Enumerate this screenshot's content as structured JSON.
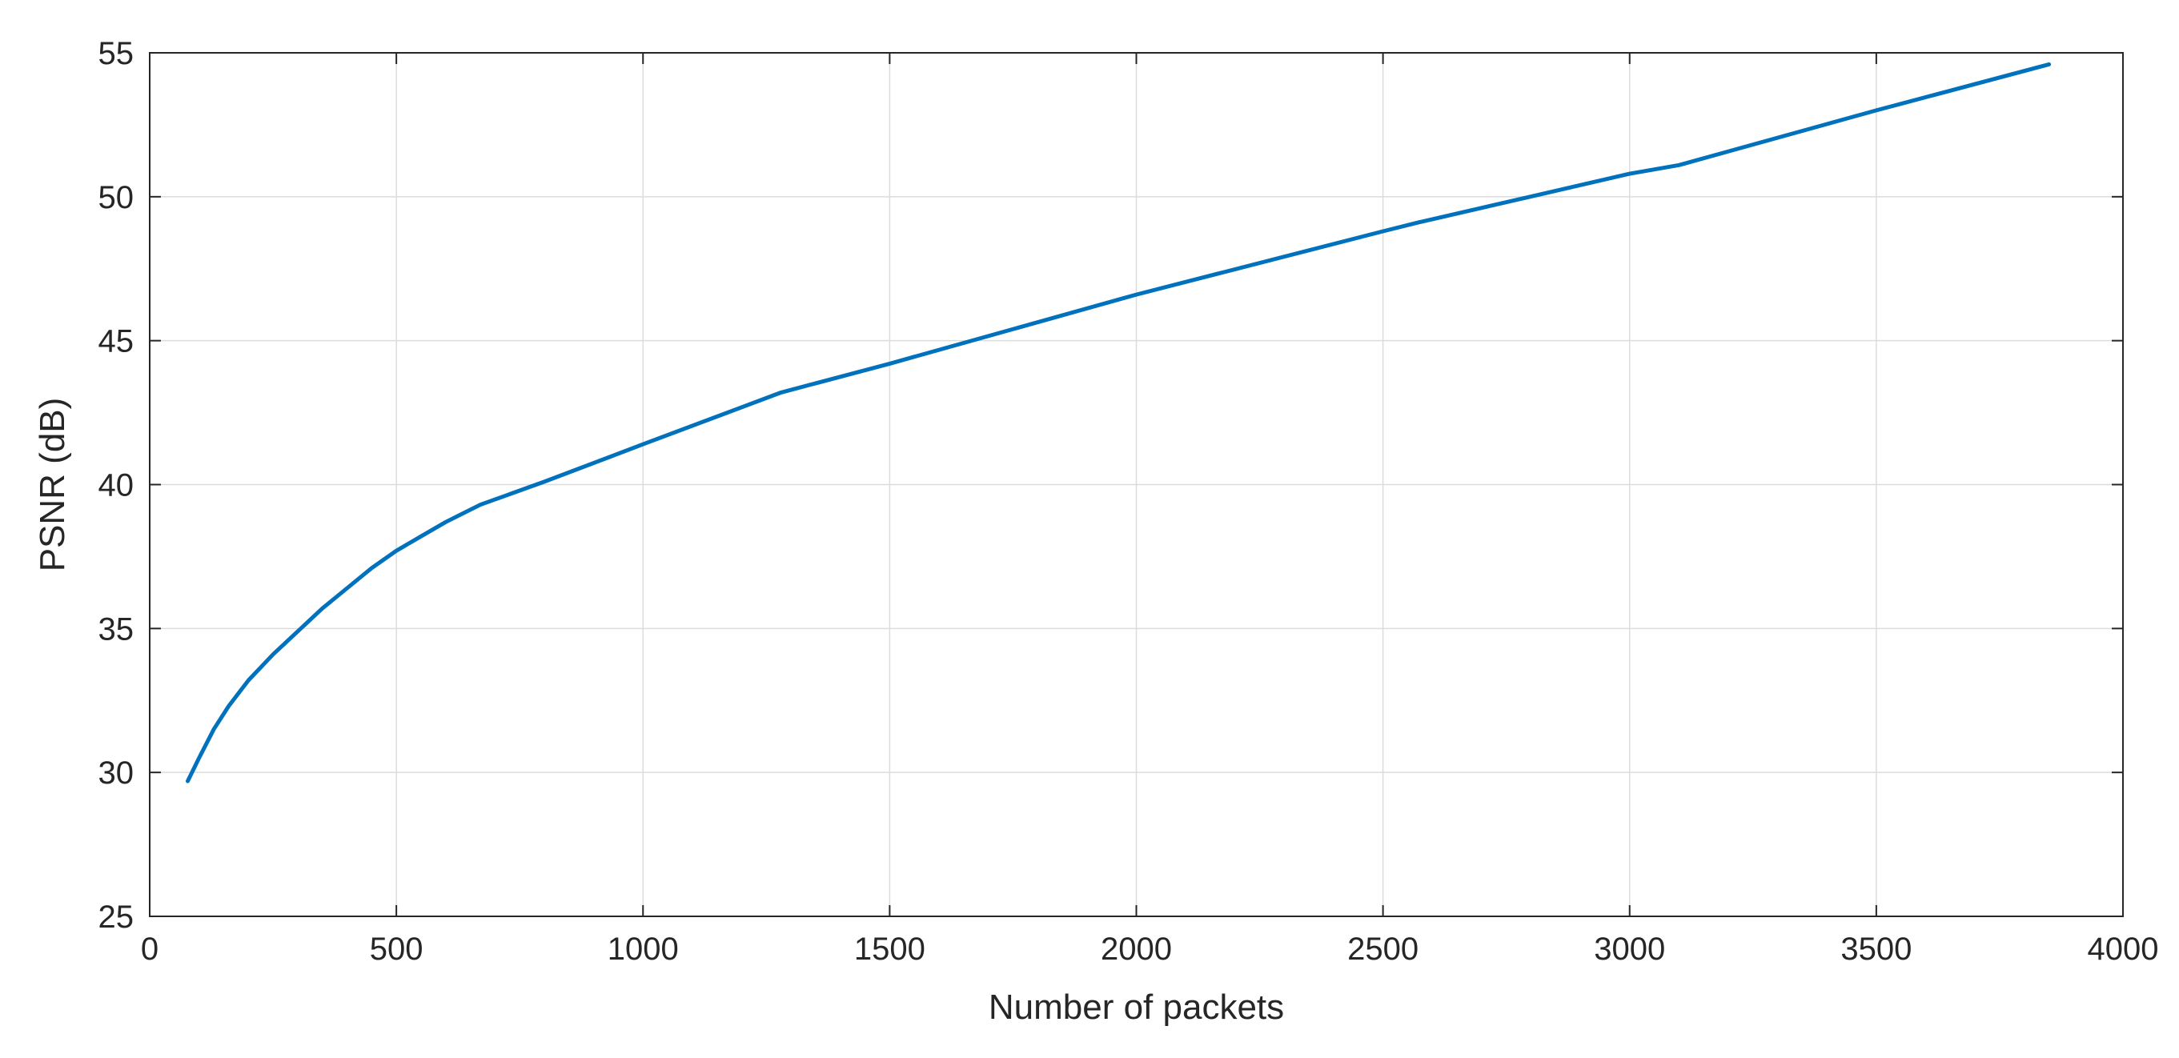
{
  "chart_data": {
    "type": "line",
    "title": "",
    "xlabel": "Number of packets",
    "ylabel": "PSNR (dB)",
    "xlim": [
      0,
      4000
    ],
    "ylim": [
      25,
      55
    ],
    "xticks": [
      0,
      500,
      1000,
      1500,
      2000,
      2500,
      3000,
      3500,
      4000
    ],
    "yticks": [
      25,
      30,
      35,
      40,
      45,
      50,
      55
    ],
    "grid": true,
    "series": [
      {
        "color": "#0072BD",
        "x": [
          77,
          100,
          130,
          160,
          200,
          250,
          300,
          350,
          400,
          450,
          500,
          550,
          600,
          670,
          800,
          1000,
          1280,
          1500,
          2000,
          2500,
          2570,
          3000,
          3100,
          3500,
          3850
        ],
        "y": [
          29.7,
          30.5,
          31.5,
          32.3,
          33.2,
          34.1,
          34.9,
          35.7,
          36.4,
          37.1,
          37.7,
          38.2,
          38.7,
          39.3,
          40.1,
          41.4,
          43.2,
          44.2,
          46.6,
          48.8,
          49.1,
          50.8,
          51.1,
          53.0,
          54.6
        ]
      }
    ]
  }
}
